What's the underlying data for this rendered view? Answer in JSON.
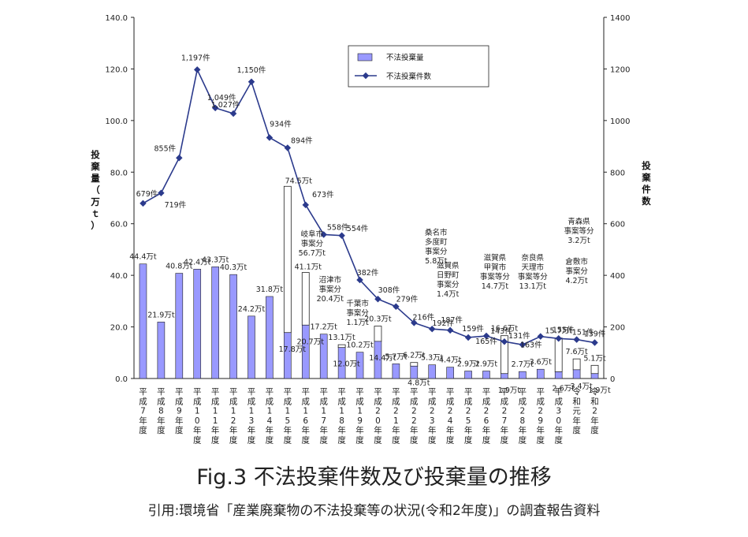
{
  "figure": {
    "title": "Fig.3  不法投棄件数及び投棄量の推移",
    "source": "引用:環境省「産業廃棄物の不法投棄等の状況(令和2年度)」の調査報告資料"
  },
  "colors": {
    "bar_fill": "#9999ff",
    "bar_stroke": "#222222",
    "line": "#2b3a8c"
  },
  "chart_data": {
    "type": "bar",
    "categories": [
      "平成7年度",
      "平成8年度",
      "平成9年度",
      "平成10年度",
      "平成11年度",
      "平成12年度",
      "平成13年度",
      "平成14年度",
      "平成15年度",
      "平成16年度",
      "平成17年度",
      "平成18年度",
      "平成19年度",
      "平成20年度",
      "平成21年度",
      "平成22年度",
      "平成23年度",
      "平成24年度",
      "平成25年度",
      "平成26年度",
      "平成27年度",
      "平成28年度",
      "平成29年度",
      "平成30年度",
      "令和元年度",
      "令和2年度"
    ],
    "category_labels_vertical": [
      "平成7年度",
      "平成8年度",
      "平成9年度",
      "平成10年度",
      "平成11年度",
      "平成12年度",
      "平成13年度",
      "平成14年度",
      "平成15年度",
      "平成16年度",
      "平成17年度",
      "平成18年度",
      "平成19年度",
      "平成20年度",
      "平成21年度",
      "平成22年度",
      "平成23年度",
      "平成24年度",
      "平成25年度",
      "平成26年度",
      "平成27年度",
      "平成28年度",
      "平成29年度",
      "平成30年度",
      "令和元年度",
      "令和2年度"
    ],
    "left_axis": {
      "label": "投棄量（万ｔ）",
      "min": 0,
      "max": 140,
      "ticks": [
        "0.0",
        "20.0",
        "40.0",
        "60.0",
        "80.0",
        "100.0",
        "120.0",
        "140.0"
      ]
    },
    "right_axis": {
      "label": "投棄件数",
      "min": 0,
      "max": 1400,
      "ticks": [
        "0",
        "200",
        "400",
        "600",
        "800",
        "1000",
        "1200",
        "1400"
      ]
    },
    "legend": {
      "position": "top-right",
      "bar_label": "不法投棄量",
      "line_label": "不法投棄件数"
    },
    "series": [
      {
        "name": "不法投棄量",
        "axis": "left",
        "type": "bar",
        "values": [
          44.4,
          21.9,
          40.8,
          42.4,
          43.3,
          40.3,
          24.2,
          31.8,
          74.5,
          41.1,
          17.2,
          13.1,
          10.2,
          20.3,
          5.7,
          6.2,
          5.3,
          4.4,
          2.9,
          2.9,
          16.6,
          2.7,
          3.6,
          15.7,
          7.6,
          5.1
        ],
        "base_values": [
          null,
          null,
          null,
          null,
          null,
          null,
          null,
          null,
          17.8,
          20.7,
          null,
          12.0,
          null,
          14.4,
          null,
          4.8,
          null,
          null,
          null,
          null,
          1.9,
          null,
          null,
          2.6,
          3.4,
          1.9
        ],
        "labels": [
          "44.4万t",
          "21.9万t",
          "40.8万t",
          "42.4万t",
          "43.3万t",
          "40.3万t",
          "24.2万t",
          "31.8万t",
          "74.5万t",
          "41.1万t",
          "17.2万t",
          "13.1万t",
          "10.2万t",
          "20.3万t",
          "5.7万t",
          "6.2万t",
          "5.3万t",
          "4.4万t",
          "2.9万t",
          "2.9万t",
          "16.6万t",
          "2.7万t",
          "3.6万t",
          "15.7万t",
          "7.6万t",
          "5.1万t"
        ],
        "base_labels": [
          "",
          "",
          "",
          "",
          "",
          "",
          "",
          "",
          "17.8万t",
          "20.7万t",
          "",
          "12.0万t",
          "",
          "14.4万t",
          "",
          "4.8万t",
          "",
          "",
          "",
          "",
          "1.9万t",
          "",
          "",
          "2.6万t",
          "3.4万t",
          "1.9万t"
        ]
      },
      {
        "name": "不法投棄件数",
        "axis": "right",
        "type": "line",
        "values": [
          679,
          719,
          855,
          1197,
          1049,
          1027,
          1150,
          934,
          894,
          673,
          558,
          554,
          382,
          308,
          279,
          216,
          192,
          187,
          159,
          165,
          143,
          131,
          163,
          155,
          151,
          139
        ],
        "labels": [
          "679件",
          "719件",
          "855件",
          "1,197件",
          "1,049件",
          "1,027件",
          "1,150件",
          "934件",
          "894件",
          "673件",
          "558件",
          "554件",
          "382件",
          "308件",
          "279件",
          "216件",
          "192件",
          "187件",
          "159件",
          "165件",
          "143件",
          "131件",
          "163件",
          "155件",
          "151件",
          "139件"
        ]
      }
    ],
    "annotations": [
      {
        "index": 8,
        "lines": [
          "岐阜市",
          "事案分",
          "56.7万t"
        ]
      },
      {
        "index": 9,
        "lines": [
          "沼津市",
          "事案分",
          "20.4万t"
        ]
      },
      {
        "index": 11,
        "lines": [
          "千葉市",
          "事案分",
          "1.1万t"
        ]
      },
      {
        "index": 15,
        "lines": [
          "桑名市",
          "多度町",
          "事案分",
          "5.8万t"
        ]
      },
      {
        "index": 16,
        "lines": [
          "滋賀県",
          "日野町",
          "事案分",
          "1.4万t"
        ]
      },
      {
        "index": 20,
        "lines": [
          "滋賀県",
          "甲賀市",
          "事案等分",
          "14.7万t"
        ]
      },
      {
        "index": 22,
        "lines": [
          "奈良県",
          "天理市",
          "事案等分",
          "13.1万t"
        ]
      },
      {
        "index": 24,
        "lines": [
          "倉敷市",
          "事案分",
          "4.2万t"
        ]
      },
      {
        "index": 25,
        "lines": [
          "青森県",
          "事案等分",
          "3.2万t"
        ]
      }
    ]
  }
}
